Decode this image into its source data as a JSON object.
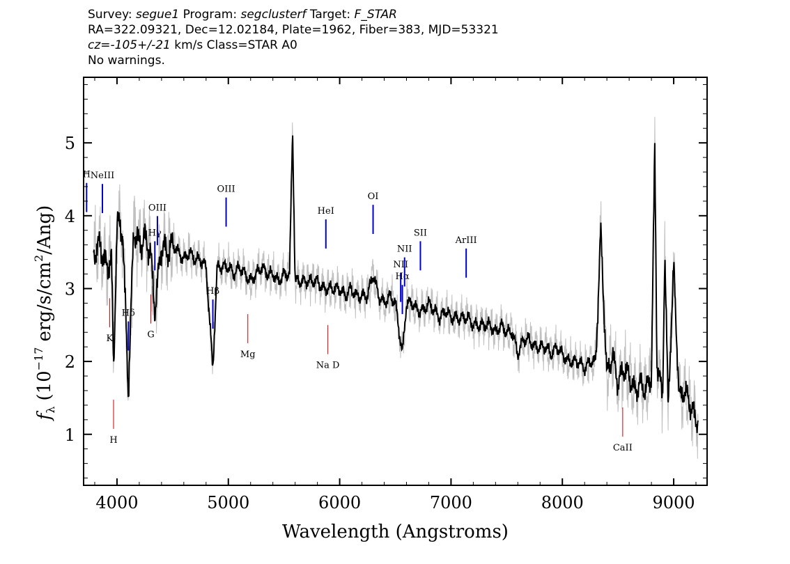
{
  "header": {
    "line1": {
      "survey_label": "Survey:",
      "survey": "segue1",
      "program_label": "Program:",
      "program": "segclusterf",
      "target_label": "Target:",
      "target": "F_STAR"
    },
    "line2": "RA=322.09321, Dec=12.02184, Plate=1962, Fiber=383, MJD=53321",
    "line3": {
      "cz_label": "cz=",
      "cz": "-105+/-21",
      "rest": "km/s Class=STAR A0"
    },
    "line4": "No warnings."
  },
  "colors": {
    "flux": "#000000",
    "error": "#c0c0c0",
    "emission_marker": "#0000cc",
    "absorption_marker": "#cc0000"
  },
  "chart_data": {
    "type": "line",
    "title": "",
    "xlabel": "Wavelength (Angstroms)",
    "ylabel_parts": {
      "f": "f",
      "sub": "λ",
      "open": "(10",
      "exp": "−17",
      "mid": "erg/s/cm",
      "sq": "2",
      "close": "/Ang)"
    },
    "xlim": [
      3700,
      9300
    ],
    "ylim": [
      0.3,
      5.9
    ],
    "x_ticks": [
      4000,
      5000,
      6000,
      7000,
      8000,
      9000
    ],
    "y_ticks": [
      1,
      2,
      3,
      4,
      5
    ],
    "series": [
      {
        "style": "black",
        "x": [
          3800,
          3850,
          3900,
          3950,
          3970,
          4000,
          4050,
          4102,
          4150,
          4200,
          4250,
          4300,
          4340,
          4400,
          4450,
          4500,
          4550,
          4600,
          4650,
          4700,
          4750,
          4800,
          4861,
          4900,
          4950,
          5000,
          5050,
          5100,
          5150,
          5200,
          5250,
          5300,
          5350,
          5400,
          5450,
          5500,
          5550,
          5577,
          5600,
          5650,
          5700,
          5750,
          5800,
          5850,
          5890,
          5950,
          6000,
          6050,
          6100,
          6150,
          6200,
          6250,
          6300,
          6350,
          6400,
          6450,
          6500,
          6563,
          6600,
          6650,
          6700,
          6750,
          6800,
          6850,
          6900,
          6950,
          7000,
          7050,
          7100,
          7150,
          7200,
          7250,
          7300,
          7350,
          7400,
          7450,
          7500,
          7550,
          7600,
          7650,
          7700,
          7750,
          7800,
          7850,
          7900,
          7950,
          8000,
          8050,
          8100,
          8150,
          8200,
          8250,
          8300,
          8344,
          8400,
          8450,
          8500,
          8550,
          8600,
          8650,
          8700,
          8750,
          8800,
          8830,
          8850,
          8900,
          8920,
          8950,
          9000,
          9050,
          9100,
          9150,
          9200
        ],
        "values": [
          3.5,
          3.6,
          3.3,
          3.4,
          1.9,
          3.9,
          3.8,
          1.6,
          3.8,
          3.6,
          3.7,
          3.5,
          2.7,
          3.6,
          3.5,
          3.6,
          3.5,
          3.4,
          3.5,
          3.4,
          3.4,
          3.3,
          1.9,
          3.3,
          3.3,
          3.3,
          3.2,
          3.3,
          3.2,
          3.1,
          3.2,
          3.3,
          3.2,
          3.2,
          3.1,
          3.2,
          3.2,
          5.2,
          3.1,
          3.1,
          3.1,
          3.1,
          3.1,
          3.0,
          3.0,
          3.0,
          3.0,
          2.9,
          3.0,
          2.9,
          2.9,
          2.9,
          3.2,
          2.9,
          2.8,
          2.9,
          2.8,
          2.1,
          2.8,
          2.8,
          2.7,
          2.7,
          2.8,
          2.7,
          2.6,
          2.7,
          2.6,
          2.6,
          2.6,
          2.6,
          2.5,
          2.5,
          2.5,
          2.5,
          2.4,
          2.5,
          2.4,
          2.4,
          2.1,
          2.3,
          2.3,
          2.2,
          2.2,
          2.2,
          2.1,
          2.2,
          2.1,
          2.0,
          2.0,
          2.0,
          1.9,
          2.0,
          2.0,
          3.8,
          1.8,
          2.1,
          1.7,
          1.9,
          1.8,
          1.6,
          1.7,
          1.6,
          1.8,
          4.9,
          2.0,
          1.5,
          3.5,
          1.4,
          3.3,
          1.5,
          1.6,
          1.4,
          1.2
        ]
      }
    ],
    "spectral_lines": [
      {
        "label": "H",
        "x": 3727,
        "kind": "emission"
      },
      {
        "label": "NeIII",
        "x": 3869,
        "kind": "emission"
      },
      {
        "label": "Hδ",
        "x": 4102,
        "kind": "emission"
      },
      {
        "label": "Hγ",
        "x": 4340,
        "kind": "emission"
      },
      {
        "label": "OIII",
        "x": 4363,
        "kind": "emission"
      },
      {
        "label": "Hβ",
        "x": 4861,
        "kind": "emission"
      },
      {
        "label": "OIII",
        "x": 4980,
        "kind": "emission"
      },
      {
        "label": "HeI",
        "x": 5876,
        "kind": "emission"
      },
      {
        "label": "OI",
        "x": 6300,
        "kind": "emission"
      },
      {
        "label": "NII",
        "x": 6548,
        "kind": "emission"
      },
      {
        "label": "Hα",
        "x": 6563,
        "kind": "emission"
      },
      {
        "label": "NII",
        "x": 6583,
        "kind": "emission"
      },
      {
        "label": "SII",
        "x": 6725,
        "kind": "emission"
      },
      {
        "label": "ArIII",
        "x": 7136,
        "kind": "emission"
      },
      {
        "label": "K",
        "x": 3934,
        "kind": "absorption"
      },
      {
        "label": "H",
        "x": 3969,
        "kind": "absorption"
      },
      {
        "label": "G",
        "x": 4304,
        "kind": "absorption"
      },
      {
        "label": "Mg",
        "x": 5175,
        "kind": "absorption"
      },
      {
        "label": "Na D",
        "x": 5894,
        "kind": "absorption"
      },
      {
        "label": "CaII",
        "x": 8542,
        "kind": "absorption"
      }
    ]
  }
}
